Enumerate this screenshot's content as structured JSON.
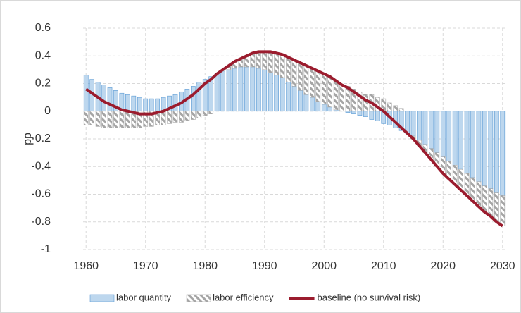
{
  "chart_data": {
    "type": "bar",
    "y_label": "pp",
    "x": [
      1960,
      1961,
      1962,
      1963,
      1964,
      1965,
      1966,
      1967,
      1968,
      1969,
      1970,
      1971,
      1972,
      1973,
      1974,
      1975,
      1976,
      1977,
      1978,
      1979,
      1980,
      1981,
      1982,
      1983,
      1984,
      1985,
      1986,
      1987,
      1988,
      1989,
      1990,
      1991,
      1992,
      1993,
      1994,
      1995,
      1996,
      1997,
      1998,
      1999,
      2000,
      2001,
      2002,
      2003,
      2004,
      2005,
      2006,
      2007,
      2008,
      2009,
      2010,
      2011,
      2012,
      2013,
      2014,
      2015,
      2016,
      2017,
      2018,
      2019,
      2020,
      2021,
      2022,
      2023,
      2024,
      2025,
      2026,
      2027,
      2028,
      2029,
      2030
    ],
    "xlim": [
      1959.5,
      2030.5
    ],
    "xticks": [
      1960,
      1970,
      1980,
      1990,
      2000,
      2010,
      2020,
      2030
    ],
    "ylim": [
      -1,
      0.6
    ],
    "yticks": [
      -1,
      -0.8,
      -0.6,
      -0.4,
      -0.2,
      0,
      0.2,
      0.4,
      0.6
    ],
    "grid": true,
    "legend": "bottom",
    "series": [
      {
        "name": "labor quantity",
        "type": "bar",
        "color": "#bdd7ee",
        "edge": "#5b9bd5",
        "values": [
          0.26,
          0.23,
          0.21,
          0.19,
          0.17,
          0.15,
          0.13,
          0.12,
          0.11,
          0.1,
          0.09,
          0.09,
          0.09,
          0.1,
          0.11,
          0.12,
          0.14,
          0.16,
          0.18,
          0.21,
          0.23,
          0.25,
          0.27,
          0.29,
          0.3,
          0.31,
          0.32,
          0.32,
          0.32,
          0.31,
          0.3,
          0.28,
          0.26,
          0.24,
          0.21,
          0.18,
          0.15,
          0.12,
          0.1,
          0.07,
          0.05,
          0.03,
          0.01,
          0.0,
          -0.01,
          -0.02,
          -0.03,
          -0.04,
          -0.06,
          -0.07,
          -0.09,
          -0.1,
          -0.12,
          -0.14,
          -0.16,
          -0.18,
          -0.21,
          -0.24,
          -0.27,
          -0.3,
          -0.33,
          -0.36,
          -0.39,
          -0.42,
          -0.45,
          -0.48,
          -0.51,
          -0.54,
          -0.56,
          -0.59,
          -0.61
        ]
      },
      {
        "name": "labor efficiency",
        "type": "bar",
        "color": "#a5a5a5",
        "hatch": true,
        "values": [
          -0.1,
          -0.1,
          -0.11,
          -0.12,
          -0.12,
          -0.12,
          -0.12,
          -0.12,
          -0.12,
          -0.12,
          -0.11,
          -0.11,
          -0.1,
          -0.1,
          -0.09,
          -0.08,
          -0.08,
          -0.07,
          -0.06,
          -0.05,
          -0.03,
          -0.02,
          0.0,
          0.01,
          0.03,
          0.05,
          0.06,
          0.08,
          0.1,
          0.12,
          0.13,
          0.15,
          0.16,
          0.17,
          0.18,
          0.19,
          0.2,
          0.21,
          0.21,
          0.22,
          0.22,
          0.22,
          0.21,
          0.19,
          0.18,
          0.16,
          0.14,
          0.12,
          0.12,
          0.1,
          0.09,
          0.06,
          0.04,
          0.02,
          0.0,
          -0.02,
          -0.04,
          -0.06,
          -0.08,
          -0.1,
          -0.12,
          -0.13,
          -0.14,
          -0.15,
          -0.16,
          -0.17,
          -0.18,
          -0.19,
          -0.2,
          -0.21,
          -0.22
        ]
      },
      {
        "name": "baseline (no survival risk)",
        "type": "line",
        "color": "#9b1c2e",
        "values": [
          0.16,
          0.13,
          0.1,
          0.07,
          0.05,
          0.03,
          0.01,
          0.0,
          -0.01,
          -0.02,
          -0.02,
          -0.02,
          -0.01,
          0.0,
          0.02,
          0.04,
          0.06,
          0.09,
          0.12,
          0.16,
          0.2,
          0.23,
          0.27,
          0.3,
          0.33,
          0.36,
          0.38,
          0.4,
          0.42,
          0.43,
          0.43,
          0.43,
          0.42,
          0.41,
          0.39,
          0.37,
          0.35,
          0.33,
          0.31,
          0.29,
          0.27,
          0.25,
          0.22,
          0.19,
          0.17,
          0.14,
          0.11,
          0.08,
          0.06,
          0.03,
          0.0,
          -0.04,
          -0.08,
          -0.12,
          -0.16,
          -0.2,
          -0.25,
          -0.3,
          -0.35,
          -0.4,
          -0.45,
          -0.49,
          -0.53,
          -0.57,
          -0.61,
          -0.65,
          -0.69,
          -0.73,
          -0.76,
          -0.8,
          -0.83
        ]
      }
    ]
  }
}
